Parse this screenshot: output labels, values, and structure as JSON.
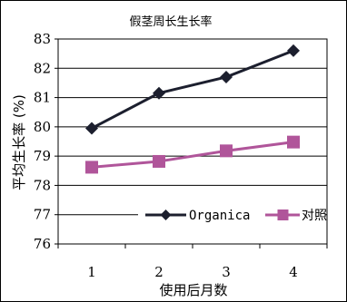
{
  "chart_data": {
    "type": "line",
    "title": "假茎周长生长率",
    "xlabel": "使用后月数",
    "ylabel": "平均生长率 (%)",
    "categories": [
      "1",
      "2",
      "3",
      "4"
    ],
    "ylim": [
      76,
      83
    ],
    "yticks": [
      76,
      77,
      78,
      79,
      80,
      81,
      82,
      83
    ],
    "grid": "horizontal",
    "legend_position": "bottom-right",
    "series": [
      {
        "name": "Organica",
        "values": [
          79.95,
          81.15,
          81.7,
          82.6
        ],
        "color": "#1c1f2e",
        "marker": "diamond"
      },
      {
        "name": "对照",
        "values": [
          78.62,
          78.82,
          79.18,
          79.48
        ],
        "color": "#b0559a",
        "marker": "square"
      }
    ]
  }
}
